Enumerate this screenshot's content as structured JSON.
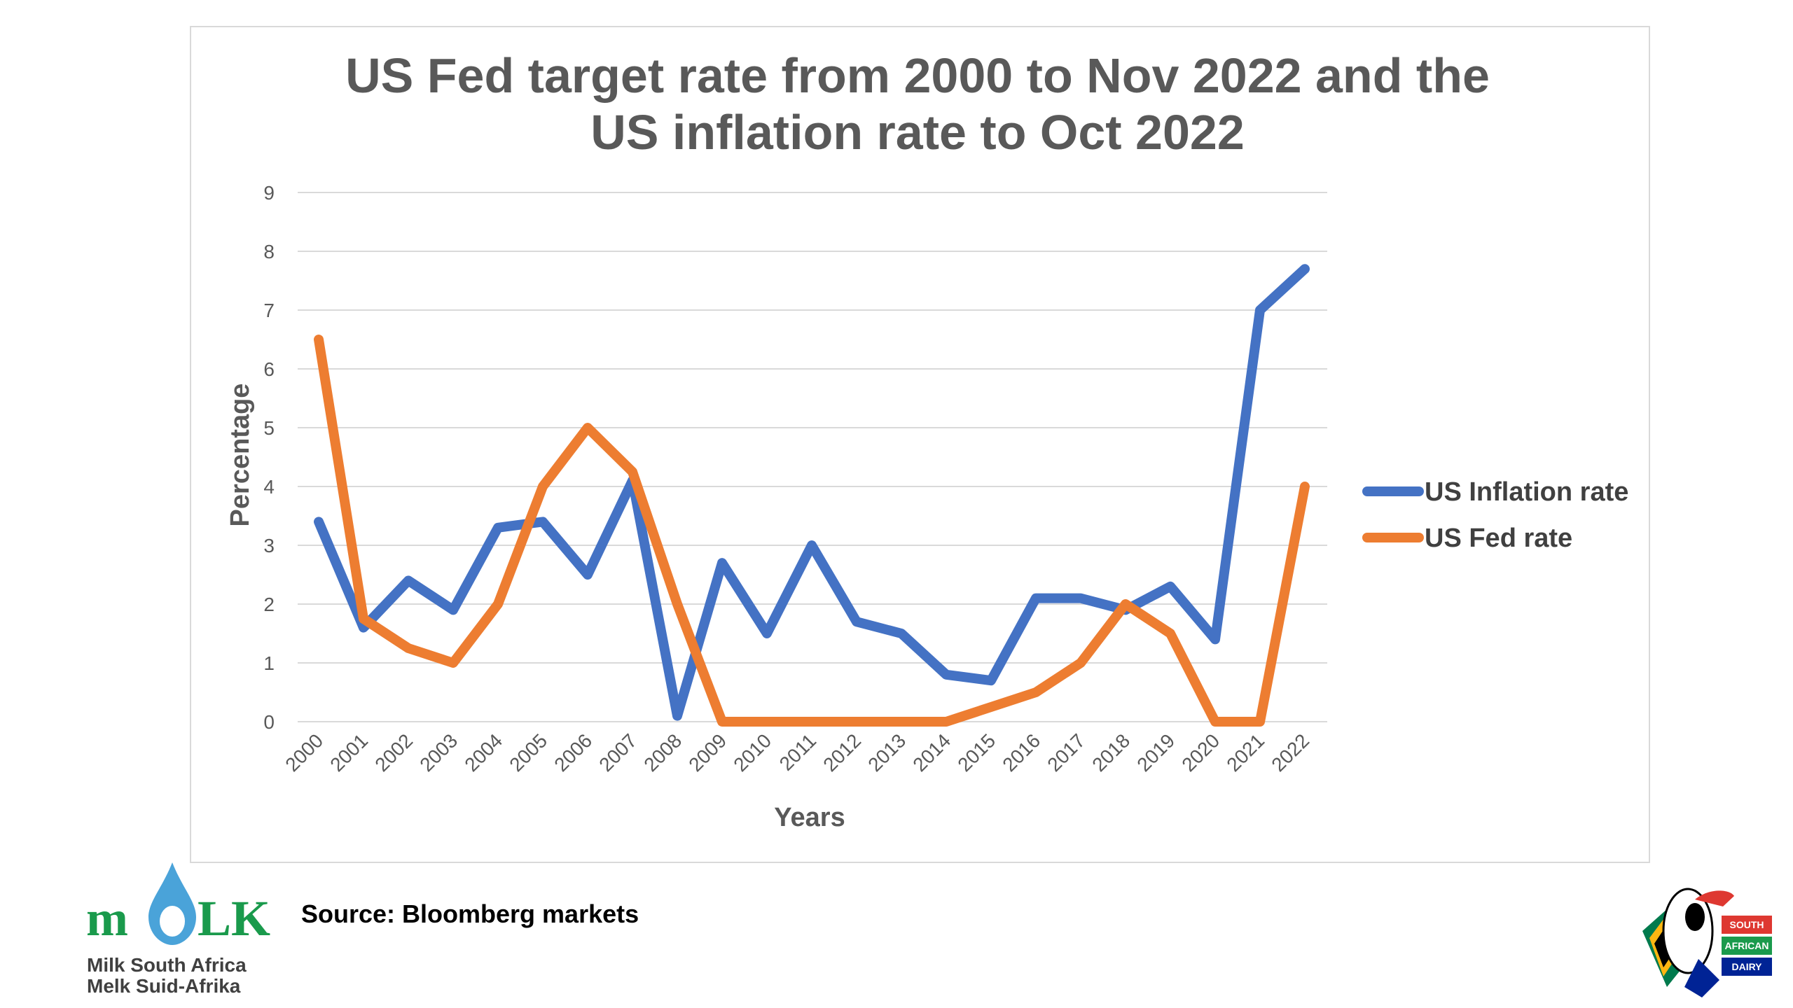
{
  "chart_data": {
    "type": "line",
    "title_lines": [
      "US Fed target rate from 2000 to Nov 2022 and the",
      "US inflation rate to Oct 2022"
    ],
    "xlabel": "Years",
    "ylabel": "Percentage",
    "ylim": [
      0,
      9
    ],
    "yticks": [
      0,
      1,
      2,
      3,
      4,
      5,
      6,
      7,
      8,
      9
    ],
    "grid": true,
    "legend_position": "right",
    "x": [
      "2000",
      "2001",
      "2002",
      "2003",
      "2004",
      "2005",
      "2006",
      "2007",
      "2008",
      "2009",
      "2010",
      "2011",
      "2012",
      "2013",
      "2014",
      "2015",
      "2016",
      "2017",
      "2018",
      "2019",
      "2020",
      "2021",
      "2022"
    ],
    "series": [
      {
        "name": "US Inflation rate",
        "color": "#4472c4",
        "values": [
          3.4,
          1.6,
          2.4,
          1.9,
          3.3,
          3.4,
          2.5,
          4.1,
          0.1,
          2.7,
          1.5,
          3.0,
          1.7,
          1.5,
          0.8,
          0.7,
          2.1,
          2.1,
          1.9,
          2.3,
          1.4,
          7.0,
          7.7
        ]
      },
      {
        "name": "US Fed rate",
        "color": "#ed7d31",
        "values": [
          6.5,
          1.75,
          1.25,
          1.0,
          2.0,
          4.0,
          5.0,
          4.25,
          2.0,
          0.0,
          0.0,
          0.0,
          0.0,
          0.0,
          0.0,
          0.25,
          0.5,
          1.0,
          2.0,
          1.5,
          0.0,
          0.0,
          4.0
        ]
      }
    ]
  },
  "source": {
    "text": "Source: Bloomberg markets"
  },
  "logos": {
    "milk_sa": {
      "wordmark_left": "m",
      "wordmark_right": "LK",
      "line1": "Milk South Africa",
      "line2": "Melk Suid-Afrika",
      "color": "#1a9a4c"
    },
    "sa_dairy": {
      "line1": "SOUTH",
      "line2": "AFRICAN",
      "line3": "DAIRY"
    }
  }
}
